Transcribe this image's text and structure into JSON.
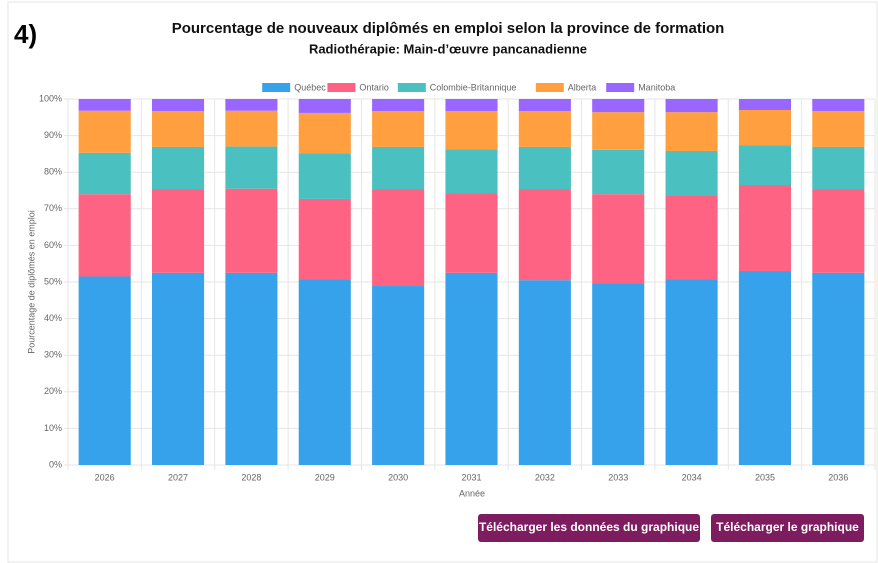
{
  "page_label": "4)",
  "buttons": [
    "Télécharger les données du graphique",
    "Télécharger le graphique"
  ],
  "chart_data": {
    "type": "stacked_bar",
    "title": "Pourcentage de nouveaux diplômés en emploi selon la province de formation",
    "subtitle": "Radiothérapie: Main-d’œuvre pancanadienne",
    "x_label": "Année",
    "y_label": "Pourcentage de diplômés en emploi",
    "categories": [
      "2026",
      "2027",
      "2028",
      "2029",
      "2030",
      "2031",
      "2032",
      "2033",
      "2034",
      "2035",
      "2036"
    ],
    "series": [
      {
        "name": "Québec",
        "color": "#36a2eb",
        "values": [
          51.5,
          52.5,
          52.5,
          50.8,
          48.9,
          52.5,
          50.5,
          49.7,
          50.8,
          53.0,
          52.5
        ]
      },
      {
        "name": "Ontario",
        "color": "#ff6384",
        "values": [
          22.5,
          22.9,
          23.0,
          21.9,
          26.5,
          21.8,
          24.9,
          24.3,
          22.7,
          23.5,
          22.9
        ]
      },
      {
        "name": "Colombie-Britannique",
        "color": "#4bc0c0",
        "values": [
          11.3,
          11.5,
          11.5,
          12.5,
          11.5,
          12.0,
          11.5,
          12.1,
          12.3,
          10.9,
          11.5
        ]
      },
      {
        "name": "Alberta",
        "color": "#ff9f40",
        "values": [
          11.5,
          9.8,
          9.8,
          11.0,
          9.8,
          10.4,
          9.8,
          10.3,
          10.6,
          9.6,
          9.8
        ]
      },
      {
        "name": "Manitoba",
        "color": "#9966ff",
        "values": [
          3.2,
          3.3,
          3.2,
          3.8,
          3.3,
          3.3,
          3.3,
          3.6,
          3.6,
          3.0,
          3.3
        ]
      }
    ],
    "ylim": [
      0,
      100
    ],
    "yticks": [
      {
        "value": 0,
        "label": "0%"
      },
      {
        "value": 10,
        "label": "10%"
      },
      {
        "value": 20,
        "label": "20%"
      },
      {
        "value": 30,
        "label": "30%"
      },
      {
        "value": 40,
        "label": "40%"
      },
      {
        "value": 50,
        "label": "50%"
      },
      {
        "value": 60,
        "label": "60%"
      },
      {
        "value": 70,
        "label": "70%"
      },
      {
        "value": 80,
        "label": "80%"
      },
      {
        "value": 90,
        "label": "90%"
      },
      {
        "value": 100,
        "label": "100%"
      }
    ],
    "grid": true,
    "legend": "top"
  }
}
